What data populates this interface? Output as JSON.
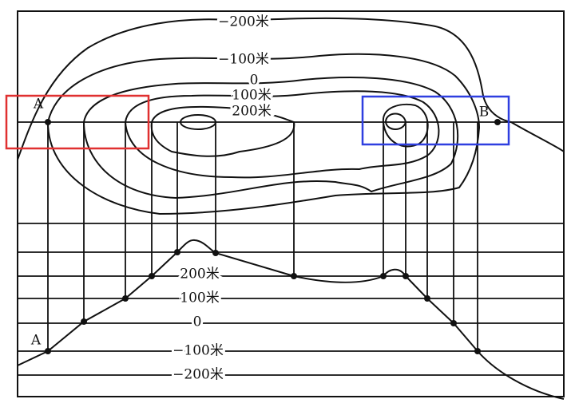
{
  "map": {
    "contour_labels": [
      "−200米",
      "−100米",
      "0",
      "100米",
      "200米"
    ],
    "point_a": "A",
    "point_b": "B"
  },
  "profile": {
    "level_labels": [
      "200米",
      "100米",
      "0",
      "−100米",
      "−200米"
    ],
    "point_a": "A"
  }
}
